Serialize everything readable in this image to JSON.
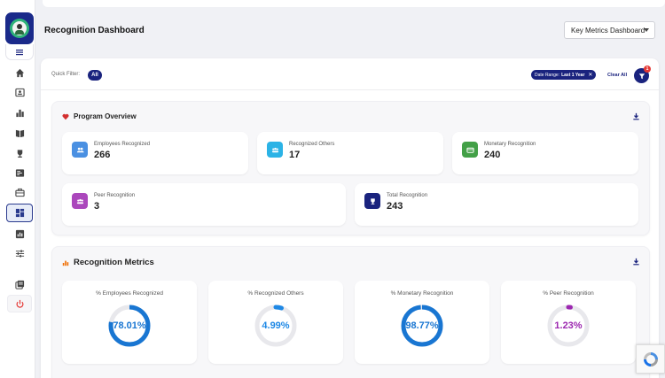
{
  "header": {
    "title": "Recognition Dashboard",
    "dashboard_select": "Key Metrics Dashboard"
  },
  "sidebar": {
    "items": [
      {
        "icon": "home-icon"
      },
      {
        "icon": "id-card-icon"
      },
      {
        "icon": "bar-chart-icon"
      },
      {
        "icon": "book-icon"
      },
      {
        "icon": "trophy-icon"
      },
      {
        "icon": "list-card-icon"
      },
      {
        "icon": "briefcase-icon"
      },
      {
        "icon": "dashboard-icon",
        "active": true
      },
      {
        "icon": "report-icon"
      },
      {
        "icon": "sliders-icon"
      },
      {
        "icon": "library-icon"
      },
      {
        "icon": "power-icon"
      }
    ]
  },
  "filters": {
    "quick_filter_label": "Quick Filter:",
    "all_label": "All",
    "date_range_label": "Date Range:",
    "date_range_value": "Last 1 Year",
    "clear_all": "Clear All",
    "badge_count": "1"
  },
  "program_overview": {
    "title": "Program Overview",
    "cards": [
      {
        "label": "Employees Recognized",
        "value": "266",
        "color": "#4a90e2"
      },
      {
        "label": "Recognized Others",
        "value": "17",
        "color": "#2bb3e6"
      },
      {
        "label": "Monetary Recognition",
        "value": "240",
        "color": "#43a047"
      },
      {
        "label": "Peer Recognition",
        "value": "3",
        "color": "#ab47bc"
      },
      {
        "label": "Total Recognition",
        "value": "243",
        "color": "#1a237e"
      }
    ]
  },
  "recognition_metrics": {
    "title": "Recognition Metrics",
    "gauges": [
      {
        "label": "% Employees Recognized",
        "value_text": "78.01%",
        "percent": 78.01,
        "color": "#1976d2"
      },
      {
        "label": "% Recognized Others",
        "value_text": "4.99%",
        "percent": 4.99,
        "color": "#1e88e5"
      },
      {
        "label": "% Monetary Recognition",
        "value_text": "98.77%",
        "percent": 98.77,
        "color": "#1976d2"
      },
      {
        "label": "% Peer Recognition",
        "value_text": "1.23%",
        "percent": 1.23,
        "color": "#9c27b0"
      }
    ]
  }
}
